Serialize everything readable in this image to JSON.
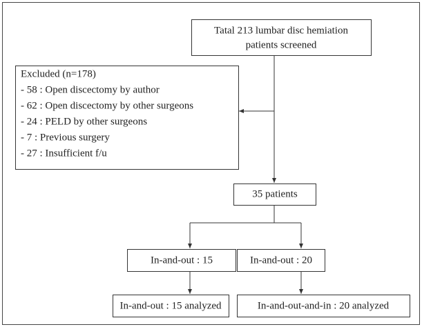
{
  "nodes": [
    {
      "lines": [
        "Tatal 213 lumbar disc hemiation",
        "patients screened"
      ]
    },
    {
      "lines": [
        "Excluded (n=178)",
        "- 58 : Open discectomy by author",
        "- 62 : Open discectomy by other surgeons",
        "- 24 : PELD by other surgeons",
        "- 7 : Previous surgery",
        "- 27 : Insufficient f/u"
      ]
    },
    {
      "lines": [
        "35 patients"
      ]
    },
    {
      "lines": [
        "In-and-out : 15"
      ]
    },
    {
      "lines": [
        "In-and-out : 20"
      ]
    },
    {
      "lines": [
        "In-and-out : 15 analyzed"
      ]
    },
    {
      "lines": [
        "In-and-out-and-in : 20 analyzed"
      ]
    }
  ]
}
